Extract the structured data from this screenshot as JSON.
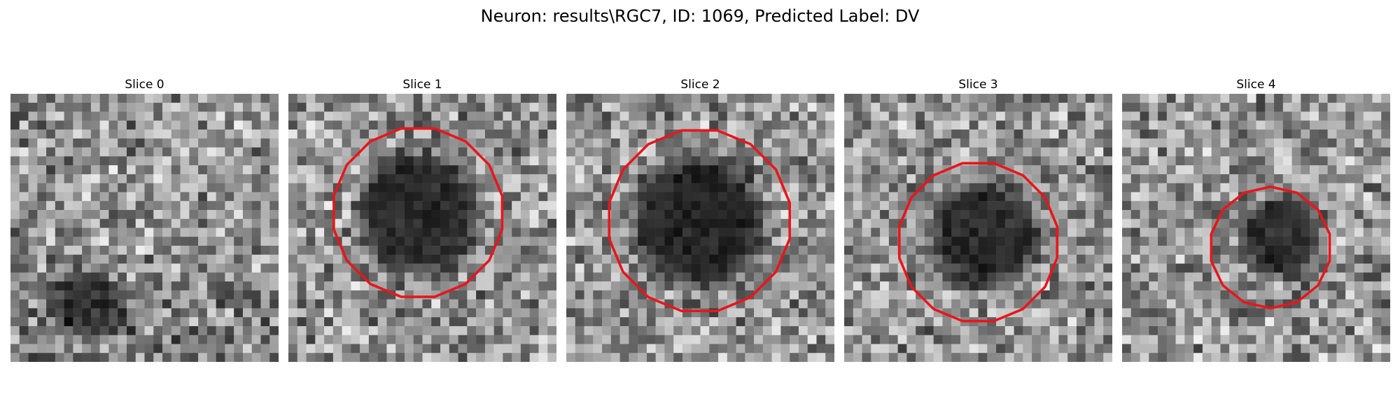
{
  "figure": {
    "title": "Neuron: results\\RGC7, ID: 1069, Predicted Label: DV"
  },
  "colors": {
    "contour": "#e8161b",
    "background": "#ffffff"
  },
  "panels": [
    {
      "title": "Slice 0",
      "has_contour": false,
      "dark_blob": "lower-left"
    },
    {
      "title": "Slice 1",
      "has_contour": true,
      "dark_blob": "center"
    },
    {
      "title": "Slice 2",
      "has_contour": true,
      "dark_blob": "center"
    },
    {
      "title": "Slice 3",
      "has_contour": true,
      "dark_blob": "center"
    },
    {
      "title": "Slice 4",
      "has_contour": true,
      "dark_blob": "center-right"
    }
  ]
}
